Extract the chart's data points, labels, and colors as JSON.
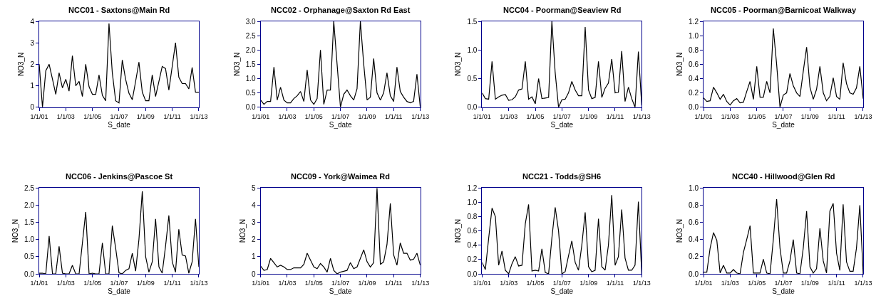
{
  "chart_data": [
    {
      "type": "line",
      "title": "NCC01 - Saxtons@Main Rd",
      "xlabel": "S_date",
      "ylabel": "NO3_N",
      "color": "#000000",
      "xlim": [
        "2001-01-01",
        "2013-01-01"
      ],
      "xticks": [
        {
          "value": "2001-01-01",
          "label": "1/1/01"
        },
        {
          "value": "2003-01-01",
          "label": "1/1/03"
        },
        {
          "value": "2005-01-01",
          "label": "1/1/05"
        },
        {
          "value": "2007-01-01",
          "label": "1/1/07"
        },
        {
          "value": "2009-01-01",
          "label": "1/1/09"
        },
        {
          "value": "2011-01-01",
          "label": "1/1/11"
        },
        {
          "value": "2013-01-01",
          "label": "1/1/13"
        }
      ],
      "ylim": [
        0,
        4
      ],
      "yticks": [
        0,
        1,
        2,
        3,
        4
      ],
      "x": [
        "2001-01",
        "2001-04",
        "2001-07",
        "2001-10",
        "2002-01",
        "2002-04",
        "2002-07",
        "2002-10",
        "2003-01",
        "2003-04",
        "2003-07",
        "2003-10",
        "2004-01",
        "2004-04",
        "2004-07",
        "2004-10",
        "2005-01",
        "2005-04",
        "2005-07",
        "2005-10",
        "2006-01",
        "2006-04",
        "2006-07",
        "2006-10",
        "2007-01",
        "2007-04",
        "2007-07",
        "2007-10",
        "2008-01",
        "2008-04",
        "2008-07",
        "2008-10",
        "2009-01",
        "2009-04",
        "2009-07",
        "2009-10",
        "2010-01",
        "2010-04",
        "2010-07",
        "2010-10",
        "2011-01",
        "2011-04",
        "2011-07",
        "2011-10",
        "2012-01",
        "2012-04",
        "2012-07",
        "2012-10",
        "2013-01"
      ],
      "values": [
        2.0,
        0,
        1.7,
        2.0,
        1.3,
        0.6,
        1.6,
        0.9,
        1.3,
        0.75,
        2.4,
        1.0,
        1.2,
        0.5,
        2.0,
        0.95,
        0.6,
        0.6,
        1.5,
        0.55,
        0.3,
        3.9,
        1.6,
        0.3,
        0.2,
        2.2,
        1.3,
        0.65,
        0.35,
        1.2,
        2.1,
        0.7,
        0.3,
        0.3,
        1.5,
        0.5,
        1.2,
        1.9,
        1.8,
        0.8,
        1.9,
        3.0,
        1.4,
        1.1,
        1.1,
        0.85,
        1.85,
        0.7,
        0.7
      ]
    },
    {
      "type": "line",
      "title": "NCC02 - Orphanage@Saxton Rd East",
      "xlabel": "S_date",
      "ylabel": "NO3_N",
      "color": "#000000",
      "xlim": [
        "2001-01-01",
        "2013-01-01"
      ],
      "xticks": [
        {
          "value": "2001-01-01",
          "label": "1/1/01"
        },
        {
          "value": "2003-01-01",
          "label": "1/1/03"
        },
        {
          "value": "2005-01-01",
          "label": "1/1/05"
        },
        {
          "value": "2007-01-01",
          "label": "1/1/07"
        },
        {
          "value": "2009-01-01",
          "label": "1/1/09"
        },
        {
          "value": "2011-01-01",
          "label": "1/1/11"
        },
        {
          "value": "2013-01-01",
          "label": "1/1/13"
        }
      ],
      "ylim": [
        0,
        3
      ],
      "yticks": [
        {
          "value": 0,
          "label": "0.0"
        },
        {
          "value": 0.5,
          "label": "0.5"
        },
        {
          "value": 1,
          "label": "1.0"
        },
        {
          "value": 1.5,
          "label": "1.5"
        },
        {
          "value": 2,
          "label": "2.0"
        },
        {
          "value": 2.5,
          "label": "2.5"
        },
        {
          "value": 3,
          "label": "3.0"
        }
      ],
      "x": [
        "2001-01",
        "2001-04",
        "2001-07",
        "2001-10",
        "2002-01",
        "2002-04",
        "2002-07",
        "2002-10",
        "2003-01",
        "2003-04",
        "2003-07",
        "2003-10",
        "2004-01",
        "2004-04",
        "2004-07",
        "2004-10",
        "2005-01",
        "2005-04",
        "2005-07",
        "2005-10",
        "2006-01",
        "2006-04",
        "2006-07",
        "2006-10",
        "2007-01",
        "2007-04",
        "2007-07",
        "2007-10",
        "2008-01",
        "2008-04",
        "2008-07",
        "2008-10",
        "2009-01",
        "2009-04",
        "2009-07",
        "2009-10",
        "2010-01",
        "2010-04",
        "2010-07",
        "2010-10",
        "2011-01",
        "2011-04",
        "2011-07",
        "2011-10",
        "2012-01",
        "2012-04",
        "2012-07",
        "2012-10",
        "2013-01"
      ],
      "values": [
        0.25,
        0.1,
        0.2,
        0.2,
        1.4,
        0.25,
        0.7,
        0.25,
        0.15,
        0.15,
        0.3,
        0.4,
        0.55,
        0.2,
        1.3,
        0.25,
        0.1,
        0.3,
        2.0,
        0.1,
        0.6,
        0.6,
        3.0,
        1.5,
        0.0,
        0.45,
        0.6,
        0.4,
        0.25,
        0.65,
        3.0,
        1.5,
        0.25,
        0.35,
        1.7,
        0.5,
        0.25,
        0.5,
        1.2,
        0.4,
        0.2,
        1.4,
        0.55,
        0.35,
        0.2,
        0.15,
        0.2,
        1.15,
        0.0
      ]
    },
    {
      "type": "line",
      "title": "NCC04 - Poorman@Seaview Rd",
      "xlabel": "S_date",
      "ylabel": "NO3_N",
      "color": "#000000",
      "xlim": [
        "2001-01-01",
        "2013-01-01"
      ],
      "xticks": [
        {
          "value": "2001-01-01",
          "label": "1/1/01"
        },
        {
          "value": "2003-01-01",
          "label": "1/1/03"
        },
        {
          "value": "2005-01-01",
          "label": "1/1/05"
        },
        {
          "value": "2007-01-01",
          "label": "1/1/07"
        },
        {
          "value": "2009-01-01",
          "label": "1/1/09"
        },
        {
          "value": "2011-01-01",
          "label": "1/1/11"
        },
        {
          "value": "2013-01-01",
          "label": "1/1/13"
        }
      ],
      "ylim": [
        0,
        1.5
      ],
      "yticks": [
        {
          "value": 0,
          "label": "0.0"
        },
        {
          "value": 0.5,
          "label": "0.5"
        },
        {
          "value": 1,
          "label": "1.0"
        },
        {
          "value": 1.5,
          "label": "1.5"
        }
      ],
      "x": [
        "2001-01",
        "2001-04",
        "2001-07",
        "2001-10",
        "2002-01",
        "2002-04",
        "2002-07",
        "2002-10",
        "2003-01",
        "2003-04",
        "2003-07",
        "2003-10",
        "2004-01",
        "2004-04",
        "2004-07",
        "2004-10",
        "2005-01",
        "2005-04",
        "2005-07",
        "2005-10",
        "2006-01",
        "2006-04",
        "2006-07",
        "2006-10",
        "2007-01",
        "2007-04",
        "2007-07",
        "2007-10",
        "2008-01",
        "2008-04",
        "2008-07",
        "2008-10",
        "2009-01",
        "2009-04",
        "2009-07",
        "2009-10",
        "2010-01",
        "2010-04",
        "2010-07",
        "2010-10",
        "2011-01",
        "2011-04",
        "2011-07",
        "2011-10",
        "2012-01",
        "2012-04",
        "2012-07",
        "2012-10",
        "2013-01"
      ],
      "values": [
        0.25,
        0.15,
        0.14,
        0.8,
        0.14,
        0.18,
        0.21,
        0.22,
        0.12,
        0.13,
        0.18,
        0.3,
        0.32,
        0.8,
        0.14,
        0.18,
        0.06,
        0.5,
        0.15,
        0.16,
        0.17,
        1.5,
        0.6,
        0.0,
        0.13,
        0.14,
        0.25,
        0.45,
        0.3,
        0.2,
        0.2,
        1.4,
        0.3,
        0.15,
        0.17,
        0.8,
        0.17,
        0.33,
        0.42,
        0.84,
        0.25,
        0.26,
        0.98,
        0.1,
        0.35,
        0.15,
        0.0,
        0.97,
        0.03
      ]
    },
    {
      "type": "line",
      "title": "NCC05 - Poorman@Barnicoat Walkway",
      "xlabel": "S_date",
      "ylabel": "NO3_N",
      "color": "#000000",
      "xlim": [
        "2001-01-01",
        "2013-01-01"
      ],
      "xticks": [
        {
          "value": "2001-01-01",
          "label": "1/1/01"
        },
        {
          "value": "2003-01-01",
          "label": "1/1/03"
        },
        {
          "value": "2005-01-01",
          "label": "1/1/05"
        },
        {
          "value": "2007-01-01",
          "label": "1/1/07"
        },
        {
          "value": "2009-01-01",
          "label": "1/1/09"
        },
        {
          "value": "2011-01-01",
          "label": "1/1/11"
        },
        {
          "value": "2013-01-01",
          "label": "1/1/13"
        }
      ],
      "ylim": [
        0,
        1.2
      ],
      "yticks": [
        {
          "value": 0,
          "label": "0.0"
        },
        {
          "value": 0.2,
          "label": "0.2"
        },
        {
          "value": 0.4,
          "label": "0.4"
        },
        {
          "value": 0.6,
          "label": "0.6"
        },
        {
          "value": 0.8,
          "label": "0.8"
        },
        {
          "value": 1,
          "label": "1.0"
        },
        {
          "value": 1.2,
          "label": "1.2"
        }
      ],
      "x": [
        "2001-01",
        "2001-04",
        "2001-07",
        "2001-10",
        "2002-01",
        "2002-04",
        "2002-07",
        "2002-10",
        "2003-01",
        "2003-04",
        "2003-07",
        "2003-10",
        "2004-01",
        "2004-04",
        "2004-07",
        "2004-10",
        "2005-01",
        "2005-04",
        "2005-07",
        "2005-10",
        "2006-01",
        "2006-04",
        "2006-07",
        "2006-10",
        "2007-01",
        "2007-04",
        "2007-07",
        "2007-10",
        "2008-01",
        "2008-04",
        "2008-07",
        "2008-10",
        "2009-01",
        "2009-04",
        "2009-07",
        "2009-10",
        "2010-01",
        "2010-04",
        "2010-07",
        "2010-10",
        "2011-01",
        "2011-04",
        "2011-07",
        "2011-10",
        "2012-01",
        "2012-04",
        "2012-07",
        "2012-10",
        "2013-01"
      ],
      "values": [
        0.13,
        0.08,
        0.09,
        0.28,
        0.2,
        0.11,
        0.18,
        0.08,
        0.03,
        0.09,
        0.12,
        0.06,
        0.07,
        0.22,
        0.36,
        0.11,
        0.57,
        0.14,
        0.14,
        0.36,
        0.2,
        1.1,
        0.6,
        0.0,
        0.17,
        0.2,
        0.47,
        0.3,
        0.2,
        0.15,
        0.5,
        0.84,
        0.28,
        0.11,
        0.25,
        0.57,
        0.2,
        0.09,
        0.15,
        0.41,
        0.15,
        0.11,
        0.62,
        0.33,
        0.2,
        0.18,
        0.27,
        0.57,
        0.12
      ]
    },
    {
      "type": "line",
      "title": "NCC06 - Jenkins@Pascoe St",
      "xlabel": "S_date",
      "ylabel": "NO3_N",
      "color": "#000000",
      "xlim": [
        "2001-01-01",
        "2013-01-01"
      ],
      "xticks": [
        {
          "value": "2001-01-01",
          "label": "1/1/01"
        },
        {
          "value": "2003-01-01",
          "label": "1/1/03"
        },
        {
          "value": "2005-01-01",
          "label": "1/1/05"
        },
        {
          "value": "2007-01-01",
          "label": "1/1/07"
        },
        {
          "value": "2009-01-01",
          "label": "1/1/09"
        },
        {
          "value": "2011-01-01",
          "label": "1/1/11"
        },
        {
          "value": "2013-01-01",
          "label": "1/1/13"
        }
      ],
      "ylim": [
        0,
        2.5
      ],
      "yticks": [
        {
          "value": 0,
          "label": "0.0"
        },
        {
          "value": 0.5,
          "label": "0.5"
        },
        {
          "value": 1,
          "label": "1.0"
        },
        {
          "value": 1.5,
          "label": "1.5"
        },
        {
          "value": 2,
          "label": "2.0"
        },
        {
          "value": 2.5,
          "label": "2.5"
        }
      ],
      "x": [
        "2001-01",
        "2001-04",
        "2001-07",
        "2001-10",
        "2002-01",
        "2002-04",
        "2002-07",
        "2002-10",
        "2003-01",
        "2003-04",
        "2003-07",
        "2003-10",
        "2004-01",
        "2004-04",
        "2004-07",
        "2004-10",
        "2005-01",
        "2005-04",
        "2005-07",
        "2005-10",
        "2006-01",
        "2006-04",
        "2006-07",
        "2006-10",
        "2007-01",
        "2007-04",
        "2007-07",
        "2007-10",
        "2008-01",
        "2008-04",
        "2008-07",
        "2008-10",
        "2009-01",
        "2009-04",
        "2009-07",
        "2009-10",
        "2010-01",
        "2010-04",
        "2010-07",
        "2010-10",
        "2011-01",
        "2011-04",
        "2011-07",
        "2011-10",
        "2012-01",
        "2012-04",
        "2012-07",
        "2012-10",
        "2013-01"
      ],
      "values": [
        0.02,
        0.02,
        0.0,
        1.1,
        0.0,
        0.0,
        0.8,
        0.02,
        0.0,
        0.0,
        0.25,
        0.0,
        0.0,
        0.9,
        1.8,
        0.0,
        0.02,
        0.0,
        0.0,
        0.9,
        0.0,
        0.0,
        1.4,
        0.75,
        0.03,
        0.0,
        0.1,
        0.15,
        0.6,
        0.08,
        1.0,
        2.4,
        0.5,
        0.05,
        0.35,
        1.6,
        0.2,
        0.02,
        0.8,
        1.7,
        0.35,
        0.05,
        1.3,
        0.55,
        0.52,
        0.02,
        0.35,
        1.6,
        0.2
      ]
    },
    {
      "type": "line",
      "title": "NCC09 - York@Waimea Rd",
      "xlabel": "S_date",
      "ylabel": "NO3_N",
      "color": "#000000",
      "xlim": [
        "2001-01-01",
        "2013-01-01"
      ],
      "xticks": [
        {
          "value": "2001-01-01",
          "label": "1/1/01"
        },
        {
          "value": "2003-01-01",
          "label": "1/1/03"
        },
        {
          "value": "2005-01-01",
          "label": "1/1/05"
        },
        {
          "value": "2007-01-01",
          "label": "1/1/07"
        },
        {
          "value": "2009-01-01",
          "label": "1/1/09"
        },
        {
          "value": "2011-01-01",
          "label": "1/1/11"
        },
        {
          "value": "2013-01-01",
          "label": "1/1/13"
        }
      ],
      "ylim": [
        0,
        5
      ],
      "yticks": [
        0,
        1,
        2,
        3,
        4,
        5
      ],
      "x": [
        "2001-01",
        "2001-04",
        "2001-07",
        "2001-10",
        "2002-01",
        "2002-04",
        "2002-07",
        "2002-10",
        "2003-01",
        "2003-04",
        "2003-07",
        "2003-10",
        "2004-01",
        "2004-04",
        "2004-07",
        "2004-10",
        "2005-01",
        "2005-04",
        "2005-07",
        "2005-10",
        "2006-01",
        "2006-04",
        "2006-07",
        "2006-10",
        "2007-01",
        "2007-04",
        "2007-07",
        "2007-10",
        "2008-01",
        "2008-04",
        "2008-07",
        "2008-10",
        "2009-01",
        "2009-04",
        "2009-07",
        "2009-10",
        "2010-01",
        "2010-04",
        "2010-07",
        "2010-10",
        "2011-01",
        "2011-04",
        "2011-07",
        "2011-10",
        "2012-01",
        "2012-04",
        "2012-07",
        "2012-10",
        "2013-01"
      ],
      "values": [
        0.45,
        0.2,
        0.25,
        0.9,
        0.65,
        0.4,
        0.5,
        0.4,
        0.25,
        0.25,
        0.35,
        0.35,
        0.35,
        0.55,
        1.2,
        0.8,
        0.4,
        0.3,
        0.6,
        0.4,
        0.1,
        0.9,
        0.2,
        0.0,
        0.1,
        0.15,
        0.2,
        0.65,
        0.3,
        0.4,
        0.9,
        1.4,
        0.7,
        0.4,
        0.65,
        5.0,
        0.55,
        0.7,
        1.7,
        4.1,
        1.1,
        0.5,
        1.8,
        1.2,
        1.2,
        0.8,
        0.85,
        1.2,
        0.5
      ]
    },
    {
      "type": "line",
      "title": "NCC21 - Todds@SH6",
      "xlabel": "S_date",
      "ylabel": "NO3_N",
      "color": "#000000",
      "xlim": [
        "2001-01-01",
        "2013-01-01"
      ],
      "xticks": [
        {
          "value": "2001-01-01",
          "label": "1/1/01"
        },
        {
          "value": "2003-01-01",
          "label": "1/1/03"
        },
        {
          "value": "2005-01-01",
          "label": "1/1/05"
        },
        {
          "value": "2007-01-01",
          "label": "1/1/07"
        },
        {
          "value": "2009-01-01",
          "label": "1/1/09"
        },
        {
          "value": "2011-01-01",
          "label": "1/1/11"
        },
        {
          "value": "2013-01-01",
          "label": "1/1/13"
        }
      ],
      "ylim": [
        0,
        1.2
      ],
      "yticks": [
        {
          "value": 0,
          "label": "0.0"
        },
        {
          "value": 0.2,
          "label": "0.2"
        },
        {
          "value": 0.4,
          "label": "0.4"
        },
        {
          "value": 0.6,
          "label": "0.6"
        },
        {
          "value": 0.8,
          "label": "0.8"
        },
        {
          "value": 1,
          "label": "1.0"
        },
        {
          "value": 1.2,
          "label": "1.2"
        }
      ],
      "x": [
        "2001-01",
        "2001-04",
        "2001-07",
        "2001-10",
        "2002-01",
        "2002-04",
        "2002-07",
        "2002-10",
        "2003-01",
        "2003-04",
        "2003-07",
        "2003-10",
        "2004-01",
        "2004-04",
        "2004-07",
        "2004-10",
        "2005-01",
        "2005-04",
        "2005-07",
        "2005-10",
        "2006-01",
        "2006-04",
        "2006-07",
        "2006-10",
        "2007-01",
        "2007-04",
        "2007-07",
        "2007-10",
        "2008-01",
        "2008-04",
        "2008-07",
        "2008-10",
        "2009-01",
        "2009-04",
        "2009-07",
        "2009-10",
        "2010-01",
        "2010-04",
        "2010-07",
        "2010-10",
        "2011-01",
        "2011-04",
        "2011-07",
        "2011-10",
        "2012-01",
        "2012-04",
        "2012-07",
        "2012-10",
        "2013-01"
      ],
      "values": [
        0.16,
        0.06,
        0.5,
        0.92,
        0.8,
        0.12,
        0.32,
        0.05,
        0.0,
        0.14,
        0.24,
        0.11,
        0.12,
        0.7,
        0.97,
        0.04,
        0.05,
        0.04,
        0.35,
        0.02,
        0.0,
        0.5,
        0.93,
        0.6,
        0.0,
        0.03,
        0.25,
        0.46,
        0.16,
        0.05,
        0.4,
        0.86,
        0.1,
        0.03,
        0.05,
        0.77,
        0.1,
        0.05,
        0.4,
        1.1,
        0.12,
        0.24,
        0.9,
        0.22,
        0.05,
        0.05,
        0.12,
        1.01,
        0.0
      ]
    },
    {
      "type": "line",
      "title": "NCC40 - Hillwood@Glen Rd",
      "xlabel": "S_date",
      "ylabel": "NO3_N",
      "color": "#000000",
      "xlim": [
        "2001-01-01",
        "2013-01-01"
      ],
      "xticks": [
        {
          "value": "2001-01-01",
          "label": "1/1/01"
        },
        {
          "value": "2003-01-01",
          "label": "1/1/03"
        },
        {
          "value": "2005-01-01",
          "label": "1/1/05"
        },
        {
          "value": "2007-01-01",
          "label": "1/1/07"
        },
        {
          "value": "2009-01-01",
          "label": "1/1/09"
        },
        {
          "value": "2011-01-01",
          "label": "1/1/11"
        },
        {
          "value": "2013-01-01",
          "label": "1/1/13"
        }
      ],
      "ylim": [
        0,
        1.0
      ],
      "yticks": [
        {
          "value": 0,
          "label": "0.0"
        },
        {
          "value": 0.2,
          "label": "0.2"
        },
        {
          "value": 0.4,
          "label": "0.4"
        },
        {
          "value": 0.6,
          "label": "0.6"
        },
        {
          "value": 0.8,
          "label": "0.8"
        },
        {
          "value": 1,
          "label": "1.0"
        }
      ],
      "x": [
        "2001-01",
        "2001-04",
        "2001-07",
        "2001-10",
        "2002-01",
        "2002-04",
        "2002-07",
        "2002-10",
        "2003-01",
        "2003-04",
        "2003-07",
        "2003-10",
        "2004-01",
        "2004-04",
        "2004-07",
        "2004-10",
        "2005-01",
        "2005-04",
        "2005-07",
        "2005-10",
        "2006-01",
        "2006-04",
        "2006-07",
        "2006-10",
        "2007-01",
        "2007-04",
        "2007-07",
        "2007-10",
        "2008-01",
        "2008-04",
        "2008-07",
        "2008-10",
        "2009-01",
        "2009-04",
        "2009-07",
        "2009-10",
        "2010-01",
        "2010-04",
        "2010-07",
        "2010-10",
        "2011-01",
        "2011-04",
        "2011-07",
        "2011-10",
        "2012-01",
        "2012-04",
        "2012-07",
        "2012-10",
        "2013-01"
      ],
      "values": [
        0.02,
        0.02,
        0.3,
        0.48,
        0.39,
        0.01,
        0.1,
        0.01,
        0.01,
        0.05,
        0.01,
        0.0,
        0.25,
        0.4,
        0.56,
        0.01,
        0.01,
        0.01,
        0.17,
        0.01,
        0.0,
        0.4,
        0.87,
        0.3,
        0.01,
        0.01,
        0.15,
        0.4,
        0.01,
        0.0,
        0.3,
        0.73,
        0.08,
        0.01,
        0.06,
        0.53,
        0.15,
        0.01,
        0.73,
        0.82,
        0.24,
        0.04,
        0.81,
        0.14,
        0.03,
        0.03,
        0.3,
        0.8,
        0.0
      ]
    }
  ]
}
